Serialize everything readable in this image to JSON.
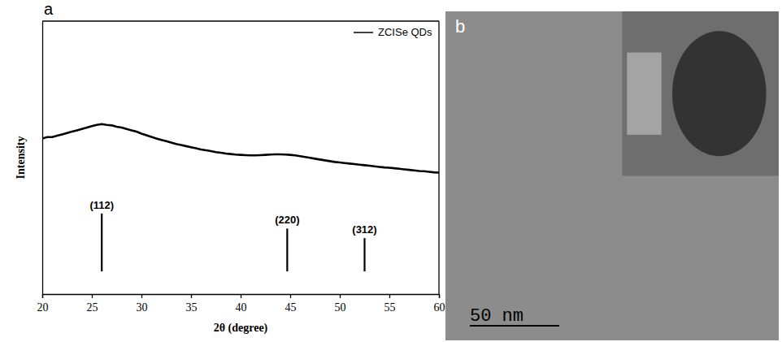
{
  "chart_data": {
    "type": "line",
    "panel_label": "a",
    "x_label": "2θ (degree)",
    "y_label": "Intensity",
    "xlim": [
      20,
      60
    ],
    "xticks": [
      20,
      25,
      30,
      35,
      40,
      45,
      50,
      55,
      60
    ],
    "ylim": [
      0,
      100
    ],
    "tick_labels": "x",
    "grid": false,
    "legend": "upper right",
    "series": [
      {
        "name": "ZCISe QDs",
        "type": "line",
        "color": "#000000",
        "x": [
          20,
          20.5,
          21,
          21.5,
          22,
          22.5,
          23,
          23.5,
          24,
          24.5,
          25,
          25.5,
          26,
          26.5,
          27,
          27.5,
          28,
          28.5,
          29,
          29.5,
          30,
          30.5,
          31,
          31.5,
          32,
          32.5,
          33,
          33.5,
          34,
          34.5,
          35,
          35.5,
          36,
          36.5,
          37,
          37.5,
          38,
          38.5,
          39,
          39.5,
          40,
          40.5,
          41,
          41.5,
          42,
          42.5,
          43,
          43.5,
          44,
          44.5,
          45,
          45.5,
          46,
          46.5,
          47,
          47.5,
          48,
          48.5,
          49,
          49.5,
          50,
          50.5,
          51,
          51.5,
          52,
          52.5,
          53,
          53.5,
          54,
          54.5,
          55,
          55.5,
          56,
          56.5,
          57,
          57.5,
          58,
          58.5,
          59,
          59.5,
          60
        ],
        "values": [
          57,
          57.5,
          57.5,
          58,
          58.5,
          59,
          59.5,
          60,
          60.5,
          61,
          61.5,
          62,
          62.3,
          62,
          61.8,
          61.3,
          61,
          60.5,
          60,
          59.5,
          58.8,
          58.2,
          57.6,
          57,
          56.5,
          56,
          55.5,
          55,
          54.6,
          54.2,
          53.8,
          53.4,
          53,
          52.7,
          52.4,
          52,
          51.8,
          51.5,
          51.3,
          51.1,
          51,
          50.9,
          50.8,
          50.8,
          50.9,
          51,
          51.1,
          51.2,
          51.2,
          51.1,
          51,
          50.8,
          50.5,
          50.2,
          49.9,
          49.6,
          49.3,
          49,
          48.7,
          48.4,
          48.2,
          48,
          47.8,
          47.6,
          47.4,
          47.2,
          47,
          46.8,
          46.6,
          46.4,
          46.3,
          46.1,
          45.9,
          45.7,
          45.5,
          45.3,
          45.1,
          45,
          44.8,
          44.6,
          44.5
        ]
      },
      {
        "type": "bar",
        "color": "#000000",
        "x": [
          26,
          44.7,
          52.5
        ],
        "values": [
          29.5,
          24,
          20.5
        ],
        "baseline": 8.3,
        "labels": [
          "(112)",
          "(220)",
          "(312)"
        ]
      }
    ]
  },
  "image_panel": {
    "label": "b",
    "scale_bar": "50 nm"
  }
}
